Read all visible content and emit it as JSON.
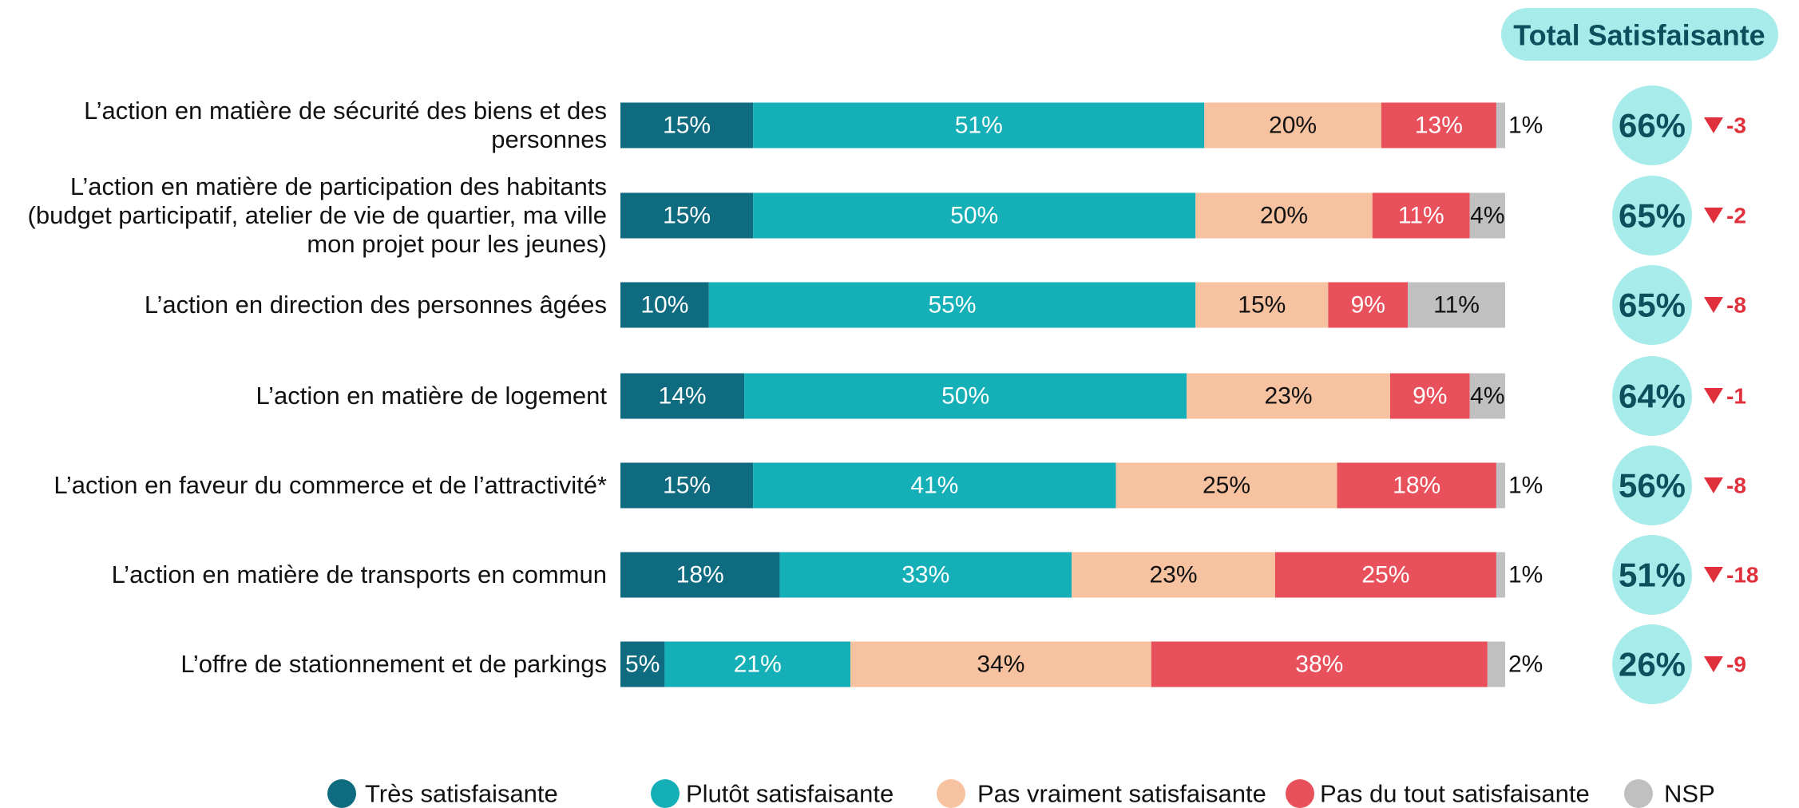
{
  "chart_data": {
    "type": "stacked-bar",
    "categories": [
      "L’action en matière de sécurité des biens et des personnes",
      "L’action en matière de participation des habitants (budget participatif, atelier de vie de quartier, ma ville mon projet pour les jeunes)",
      "L’action en direction des personnes âgées",
      "L’action en matière de logement",
      "L’action en faveur du commerce et de l’attractivité*",
      "L’action en matière de transports en commun",
      "L’offre de stationnement et de parkings"
    ],
    "xlim": [
      0,
      100
    ],
    "series": [
      {
        "name": "Très satisfaisante",
        "color": "#0e6b80",
        "values": [
          15,
          15,
          10,
          14,
          15,
          18,
          5
        ],
        "value_labels": [
          "15%",
          "15%",
          "10%",
          "14%",
          "15%",
          "18%",
          "5%"
        ]
      },
      {
        "name": "Plutôt satisfaisante",
        "color": "#14afb7",
        "values": [
          51,
          50,
          55,
          50,
          41,
          33,
          21
        ],
        "value_labels": [
          "51%",
          "50%",
          "55%",
          "50%",
          "41%",
          "33%",
          "21%"
        ]
      },
      {
        "name": "Pas vraiment satisfaisante",
        "color": "#f7c2a0",
        "values": [
          20,
          20,
          15,
          23,
          25,
          23,
          34
        ],
        "value_labels": [
          "20%",
          "20%",
          "15%",
          "23%",
          "25%",
          "23%",
          "34%"
        ]
      },
      {
        "name": "Pas du tout satisfaisante",
        "color": "#e8505b",
        "values": [
          13,
          11,
          9,
          9,
          18,
          25,
          38
        ],
        "value_labels": [
          "13%",
          "11%",
          "9%",
          "9%",
          "18%",
          "25%",
          "38%"
        ]
      },
      {
        "name": "NSP",
        "color": "#c0c0c0",
        "values": [
          1,
          4,
          11,
          4,
          1,
          1,
          2
        ],
        "value_labels": [
          "1%",
          "4%",
          "11%",
          "4%",
          "1%",
          "1%",
          "2%"
        ]
      }
    ],
    "totals": {
      "title": "Total Satisfaisante",
      "color": "#a8ebeb",
      "values": [
        66,
        65,
        65,
        64,
        56,
        51,
        26
      ],
      "value_labels": [
        "66%",
        "65%",
        "65%",
        "64%",
        "56%",
        "51%",
        "26%"
      ],
      "deltas": [
        -3,
        -2,
        -8,
        -1,
        -8,
        -18,
        -9
      ],
      "delta_color": "#e0303c"
    }
  }
}
